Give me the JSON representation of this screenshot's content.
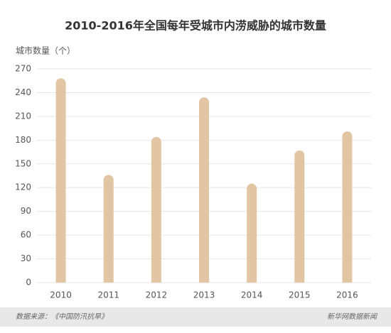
{
  "chart_data": {
    "type": "bar",
    "title": "2010-2016年全国每年受城市内涝威胁的城市数量",
    "y_label": "城市数量（个）",
    "categories": [
      "2010",
      "2011",
      "2012",
      "2013",
      "2014",
      "2015",
      "2016"
    ],
    "values": [
      258,
      136,
      184,
      234,
      125,
      167,
      191
    ],
    "color": "#e2c6a4",
    "ylim": [
      0,
      270
    ],
    "yticks": [
      0,
      30,
      60,
      90,
      120,
      150,
      180,
      210,
      240,
      270
    ],
    "grid": true,
    "source": "数据来源：《中国防汛抗旱》",
    "credit": "新华网数据新闻"
  }
}
